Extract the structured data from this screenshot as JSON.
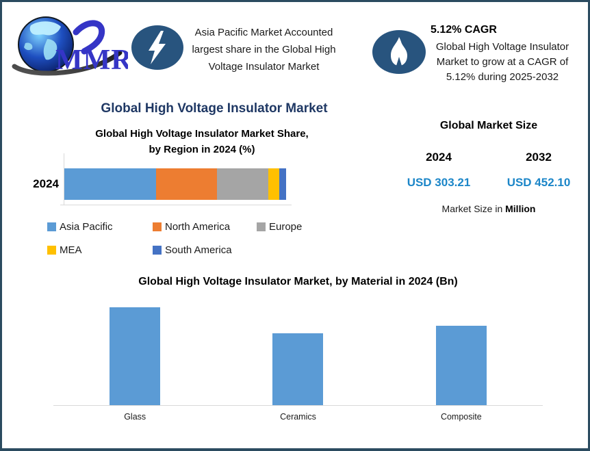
{
  "header": {
    "logo": {
      "text": "MMR"
    },
    "highlight_left": {
      "icon": "lightning-icon",
      "lines": [
        "Asia Pacific Market Accounted",
        "largest share in the Global High",
        "Voltage Insulator Market"
      ]
    },
    "highlight_right": {
      "icon": "flame-icon",
      "heading": "5.12% CAGR",
      "lines": [
        "Global High Voltage Insulator",
        "Market to grow at a CAGR of",
        "5.12% during 2025-2032"
      ]
    }
  },
  "main_title": "Global High Voltage Insulator Market",
  "market_size": {
    "title": "Global Market Size",
    "columns": [
      {
        "year": "2024",
        "value": "USD 303.21"
      },
      {
        "year": "2032",
        "value": "USD 452.10"
      }
    ],
    "footnote_prefix": "Market Size in ",
    "footnote_bold": "Million"
  },
  "colors": {
    "border": "#2B4B60",
    "navy_title": "#1F3864",
    "usd_blue": "#1C86C8",
    "icon_circle": "#28547E",
    "axis_gray": "#D9D9D9",
    "bar_blue": "#5B9BD5"
  },
  "chart_data": [
    {
      "type": "bar",
      "stacked": true,
      "orientation": "horizontal",
      "title": "Global High Voltage Insulator Market Share, by Region in 2024 (%)",
      "title_lines": [
        "Global High Voltage Insulator Market Share,",
        "by Region in 2024 (%)"
      ],
      "categories": [
        "2024"
      ],
      "series": [
        {
          "name": "Asia Pacific",
          "values": [
            41
          ],
          "color": "#5B9BD5"
        },
        {
          "name": "North America",
          "values": [
            27
          ],
          "color": "#ED7D31"
        },
        {
          "name": "Europe",
          "values": [
            23
          ],
          "color": "#A5A5A5"
        },
        {
          "name": "MEA",
          "values": [
            5
          ],
          "color": "#FFC000"
        },
        {
          "name": "South America",
          "values": [
            3
          ],
          "color": "#4472C4"
        }
      ],
      "legend_position": "bottom",
      "values_estimated": true
    },
    {
      "type": "bar",
      "title": "Global High Voltage Insulator Market, by Material in 2024 (Bn)",
      "categories": [
        "Glass",
        "Ceramics",
        "Composite"
      ],
      "values": [
        1.44,
        1.06,
        1.17
      ],
      "ylim": [
        0,
        1.5
      ],
      "bar_color": "#5B9BD5",
      "xlabel": "",
      "ylabel": "",
      "grid": false,
      "values_estimated": true
    }
  ]
}
